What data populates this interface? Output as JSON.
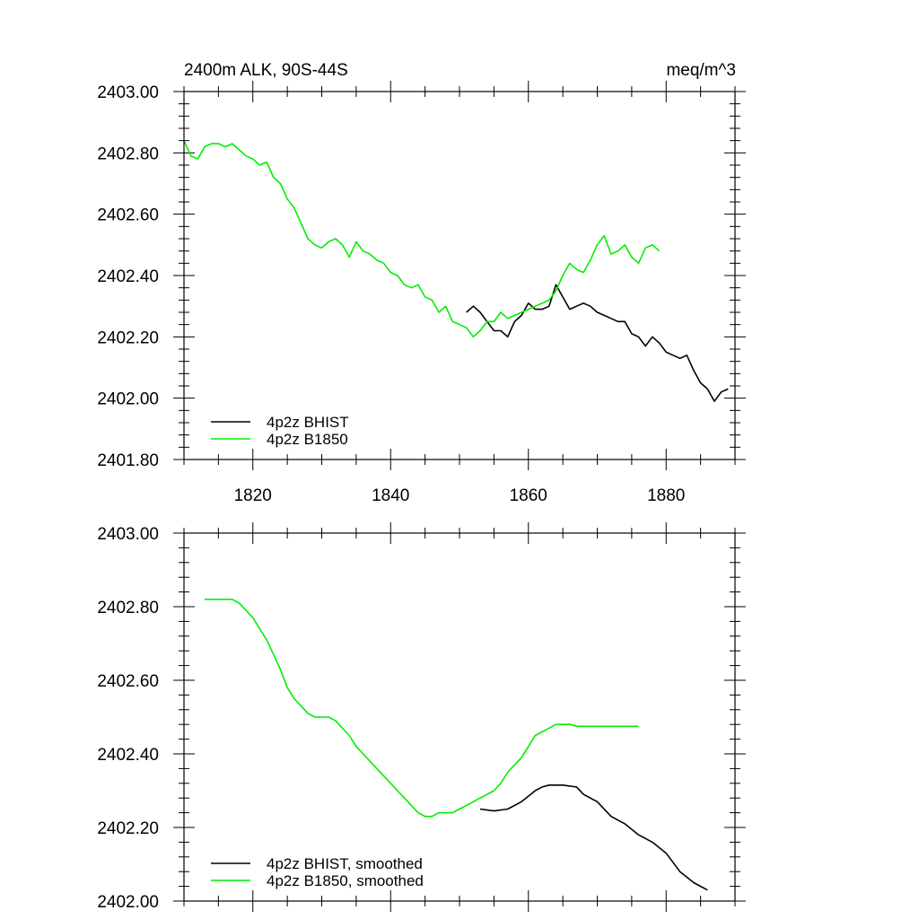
{
  "chart_data": [
    {
      "type": "line",
      "title_left": "2400m ALK, 90S-44S",
      "title_right": "meq/m^3",
      "xlim": [
        1810,
        1890
      ],
      "ylim": [
        2401.8,
        2403.0
      ],
      "xticks": [
        1820,
        1840,
        1860,
        1880
      ],
      "xtick_labels": [
        "1820",
        "1840",
        "1860",
        "1880"
      ],
      "yticks": [
        2401.8,
        2402.0,
        2402.2,
        2402.4,
        2402.6,
        2402.8,
        2403.0
      ],
      "ytick_labels": [
        "2401.80",
        "2402.00",
        "2402.20",
        "2402.40",
        "2402.60",
        "2402.80",
        "2403.00"
      ],
      "legend_position": "bottom-left",
      "series": [
        {
          "name": "4p2z BHIST",
          "color": "#000000",
          "x": [
            1851,
            1852,
            1853,
            1854,
            1855,
            1856,
            1857,
            1858,
            1859,
            1860,
            1861,
            1862,
            1863,
            1864,
            1865,
            1866,
            1867,
            1868,
            1869,
            1870,
            1871,
            1872,
            1873,
            1874,
            1875,
            1876,
            1877,
            1878,
            1879,
            1880,
            1881,
            1882,
            1883,
            1884,
            1885,
            1886,
            1887,
            1888,
            1889
          ],
          "y": [
            2402.28,
            2402.3,
            2402.28,
            2402.25,
            2402.22,
            2402.22,
            2402.2,
            2402.25,
            2402.27,
            2402.31,
            2402.29,
            2402.29,
            2402.3,
            2402.37,
            2402.33,
            2402.29,
            2402.3,
            2402.31,
            2402.3,
            2402.28,
            2402.27,
            2402.26,
            2402.25,
            2402.25,
            2402.21,
            2402.2,
            2402.17,
            2402.2,
            2402.18,
            2402.15,
            2402.14,
            2402.13,
            2402.14,
            2402.09,
            2402.05,
            2402.03,
            2401.99,
            2402.02,
            2402.03
          ]
        },
        {
          "name": "4p2z B1850",
          "color": "#00ee00",
          "x": [
            1810,
            1811,
            1812,
            1813,
            1814,
            1815,
            1816,
            1817,
            1818,
            1819,
            1820,
            1821,
            1822,
            1823,
            1824,
            1825,
            1826,
            1827,
            1828,
            1829,
            1830,
            1831,
            1832,
            1833,
            1834,
            1835,
            1836,
            1837,
            1838,
            1839,
            1840,
            1841,
            1842,
            1843,
            1844,
            1845,
            1846,
            1847,
            1848,
            1849,
            1850,
            1851,
            1852,
            1853,
            1854,
            1855,
            1856,
            1857,
            1858,
            1859,
            1860,
            1861,
            1862,
            1863,
            1864,
            1865,
            1866,
            1867,
            1868,
            1869,
            1870,
            1871,
            1872,
            1873,
            1874,
            1875,
            1876,
            1877,
            1878,
            1879
          ],
          "y": [
            2402.84,
            2402.79,
            2402.78,
            2402.82,
            2402.83,
            2402.83,
            2402.82,
            2402.83,
            2402.81,
            2402.79,
            2402.78,
            2402.76,
            2402.77,
            2402.72,
            2402.7,
            2402.65,
            2402.62,
            2402.57,
            2402.52,
            2402.5,
            2402.49,
            2402.51,
            2402.52,
            2402.5,
            2402.46,
            2402.51,
            2402.48,
            2402.47,
            2402.45,
            2402.44,
            2402.41,
            2402.4,
            2402.37,
            2402.36,
            2402.37,
            2402.33,
            2402.32,
            2402.28,
            2402.3,
            2402.25,
            2402.24,
            2402.23,
            2402.2,
            2402.22,
            2402.25,
            2402.25,
            2402.28,
            2402.26,
            2402.27,
            2402.28,
            2402.29,
            2402.3,
            2402.31,
            2402.32,
            2402.35,
            2402.4,
            2402.44,
            2402.42,
            2402.41,
            2402.45,
            2402.5,
            2402.53,
            2402.47,
            2402.48,
            2402.5,
            2402.46,
            2402.44,
            2402.49,
            2402.5,
            2402.48
          ]
        }
      ]
    },
    {
      "type": "line",
      "xlim": [
        1810,
        1890
      ],
      "ylim": [
        2402.0,
        2403.0
      ],
      "xticks": [
        1820,
        1840,
        1860,
        1880
      ],
      "yticks": [
        2402.0,
        2402.2,
        2402.4,
        2402.6,
        2402.8,
        2403.0
      ],
      "ytick_labels": [
        "2402.00",
        "2402.20",
        "2402.40",
        "2402.60",
        "2402.80",
        "2403.00"
      ],
      "legend_position": "bottom-left",
      "series": [
        {
          "name": "4p2z BHIST, smoothed",
          "color": "#000000",
          "x": [
            1853,
            1855,
            1857,
            1859,
            1861,
            1862,
            1863,
            1865,
            1867,
            1868,
            1870,
            1872,
            1874,
            1876,
            1878,
            1880,
            1882,
            1884,
            1886
          ],
          "y": [
            2402.25,
            2402.245,
            2402.25,
            2402.27,
            2402.3,
            2402.31,
            2402.315,
            2402.315,
            2402.31,
            2402.29,
            2402.27,
            2402.23,
            2402.21,
            2402.18,
            2402.16,
            2402.13,
            2402.08,
            2402.05,
            2402.03
          ]
        },
        {
          "name": "4p2z B1850, smoothed",
          "color": "#00ee00",
          "x": [
            1813,
            1814,
            1815,
            1816,
            1817,
            1818,
            1819,
            1820,
            1821,
            1822,
            1823,
            1824,
            1825,
            1826,
            1827,
            1828,
            1829,
            1830,
            1831,
            1832,
            1833,
            1834,
            1835,
            1836,
            1837,
            1838,
            1839,
            1840,
            1841,
            1842,
            1843,
            1844,
            1845,
            1846,
            1847,
            1848,
            1849,
            1850,
            1851,
            1852,
            1853,
            1854,
            1855,
            1856,
            1857,
            1858,
            1859,
            1860,
            1861,
            1862,
            1863,
            1864,
            1865,
            1866,
            1867,
            1868,
            1869,
            1870,
            1871,
            1872,
            1873,
            1874,
            1875,
            1876
          ],
          "y": [
            2402.82,
            2402.82,
            2402.82,
            2402.82,
            2402.82,
            2402.81,
            2402.79,
            2402.77,
            2402.74,
            2402.71,
            2402.67,
            2402.63,
            2402.58,
            2402.55,
            2402.53,
            2402.51,
            2402.5,
            2402.5,
            2402.5,
            2402.49,
            2402.47,
            2402.45,
            2402.42,
            2402.4,
            2402.38,
            2402.36,
            2402.34,
            2402.32,
            2402.3,
            2402.28,
            2402.26,
            2402.24,
            2402.23,
            2402.23,
            2402.24,
            2402.24,
            2402.24,
            2402.25,
            2402.26,
            2402.27,
            2402.28,
            2402.29,
            2402.3,
            2402.32,
            2402.35,
            2402.37,
            2402.39,
            2402.42,
            2402.45,
            2402.46,
            2402.47,
            2402.48,
            2402.48,
            2402.48,
            2402.475,
            2402.475,
            2402.475,
            2402.475,
            2402.475,
            2402.475,
            2402.475,
            2402.475,
            2402.475,
            2402.475
          ]
        }
      ]
    }
  ]
}
